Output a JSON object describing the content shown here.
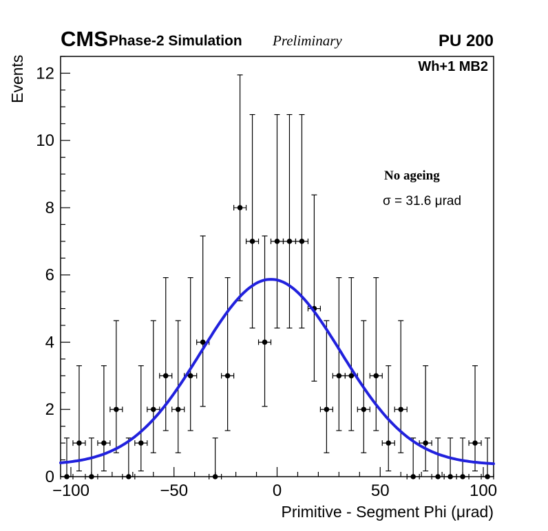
{
  "header": {
    "experiment": "CMS",
    "subtitle": "Phase-2 Simulation",
    "preliminary": "Preliminary",
    "pileup": "PU 200"
  },
  "plot_label": "Wh+1 MB2",
  "legend": {
    "title": "No ageing",
    "sigma_text": "σ = 31.6 μrad"
  },
  "chart_data": {
    "type": "scatter",
    "title": "",
    "xlabel": "Primitive - Segment Phi (μrad)",
    "ylabel": "Events",
    "xlim": [
      -105,
      105
    ],
    "ylim": [
      0,
      12.5
    ],
    "grid": false,
    "x_ticks": {
      "values": [
        -100,
        -50,
        0,
        50,
        100
      ],
      "labels": [
        "−100",
        "−50",
        "0",
        "50",
        "100"
      ],
      "minor_step": 10
    },
    "y_ticks": {
      "values": [
        0,
        2,
        4,
        6,
        8,
        10,
        12
      ],
      "labels": [
        "0",
        "2",
        "4",
        "6",
        "8",
        "10",
        "12"
      ],
      "minor_step": 0.5
    },
    "bin_half_width": 3,
    "bins": [
      [
        -102,
        0
      ],
      [
        -96,
        1
      ],
      [
        -90,
        0
      ],
      [
        -84,
        1
      ],
      [
        -78,
        2
      ],
      [
        -72,
        0
      ],
      [
        -66,
        1
      ],
      [
        -60,
        2
      ],
      [
        -54,
        3
      ],
      [
        -48,
        2
      ],
      [
        -42,
        3
      ],
      [
        -36,
        4
      ],
      [
        -30,
        0
      ],
      [
        -24,
        3
      ],
      [
        -18,
        8
      ],
      [
        -12,
        7
      ],
      [
        -6,
        4
      ],
      [
        0,
        7
      ],
      [
        6,
        7
      ],
      [
        12,
        7
      ],
      [
        18,
        5
      ],
      [
        24,
        2
      ],
      [
        30,
        3
      ],
      [
        36,
        3
      ],
      [
        42,
        2
      ],
      [
        48,
        3
      ],
      [
        54,
        1
      ],
      [
        60,
        2
      ],
      [
        66,
        0
      ],
      [
        72,
        1
      ],
      [
        78,
        0
      ],
      [
        84,
        0
      ],
      [
        90,
        0
      ],
      [
        96,
        1
      ],
      [
        102,
        0
      ]
    ],
    "poisson_errors": {
      "0": [
        0,
        1.15
      ],
      "1": [
        0.83,
        2.3
      ],
      "2": [
        1.29,
        2.64
      ],
      "3": [
        1.63,
        2.92
      ],
      "4": [
        1.91,
        3.16
      ],
      "5": [
        2.16,
        3.38
      ],
      "7": [
        2.58,
        3.77
      ],
      "8": [
        2.77,
        3.95
      ]
    },
    "fit_curve": {
      "shape": "gaussian+offset",
      "sigma_label_value": 31.6,
      "mean": -3,
      "draw_sigma": 34,
      "amplitude": 5.52,
      "offset": 0.35
    },
    "colors": {
      "curve": "#2121dd",
      "marker": "#000000",
      "frame": "#000000"
    },
    "marker_radius": 3.8
  }
}
